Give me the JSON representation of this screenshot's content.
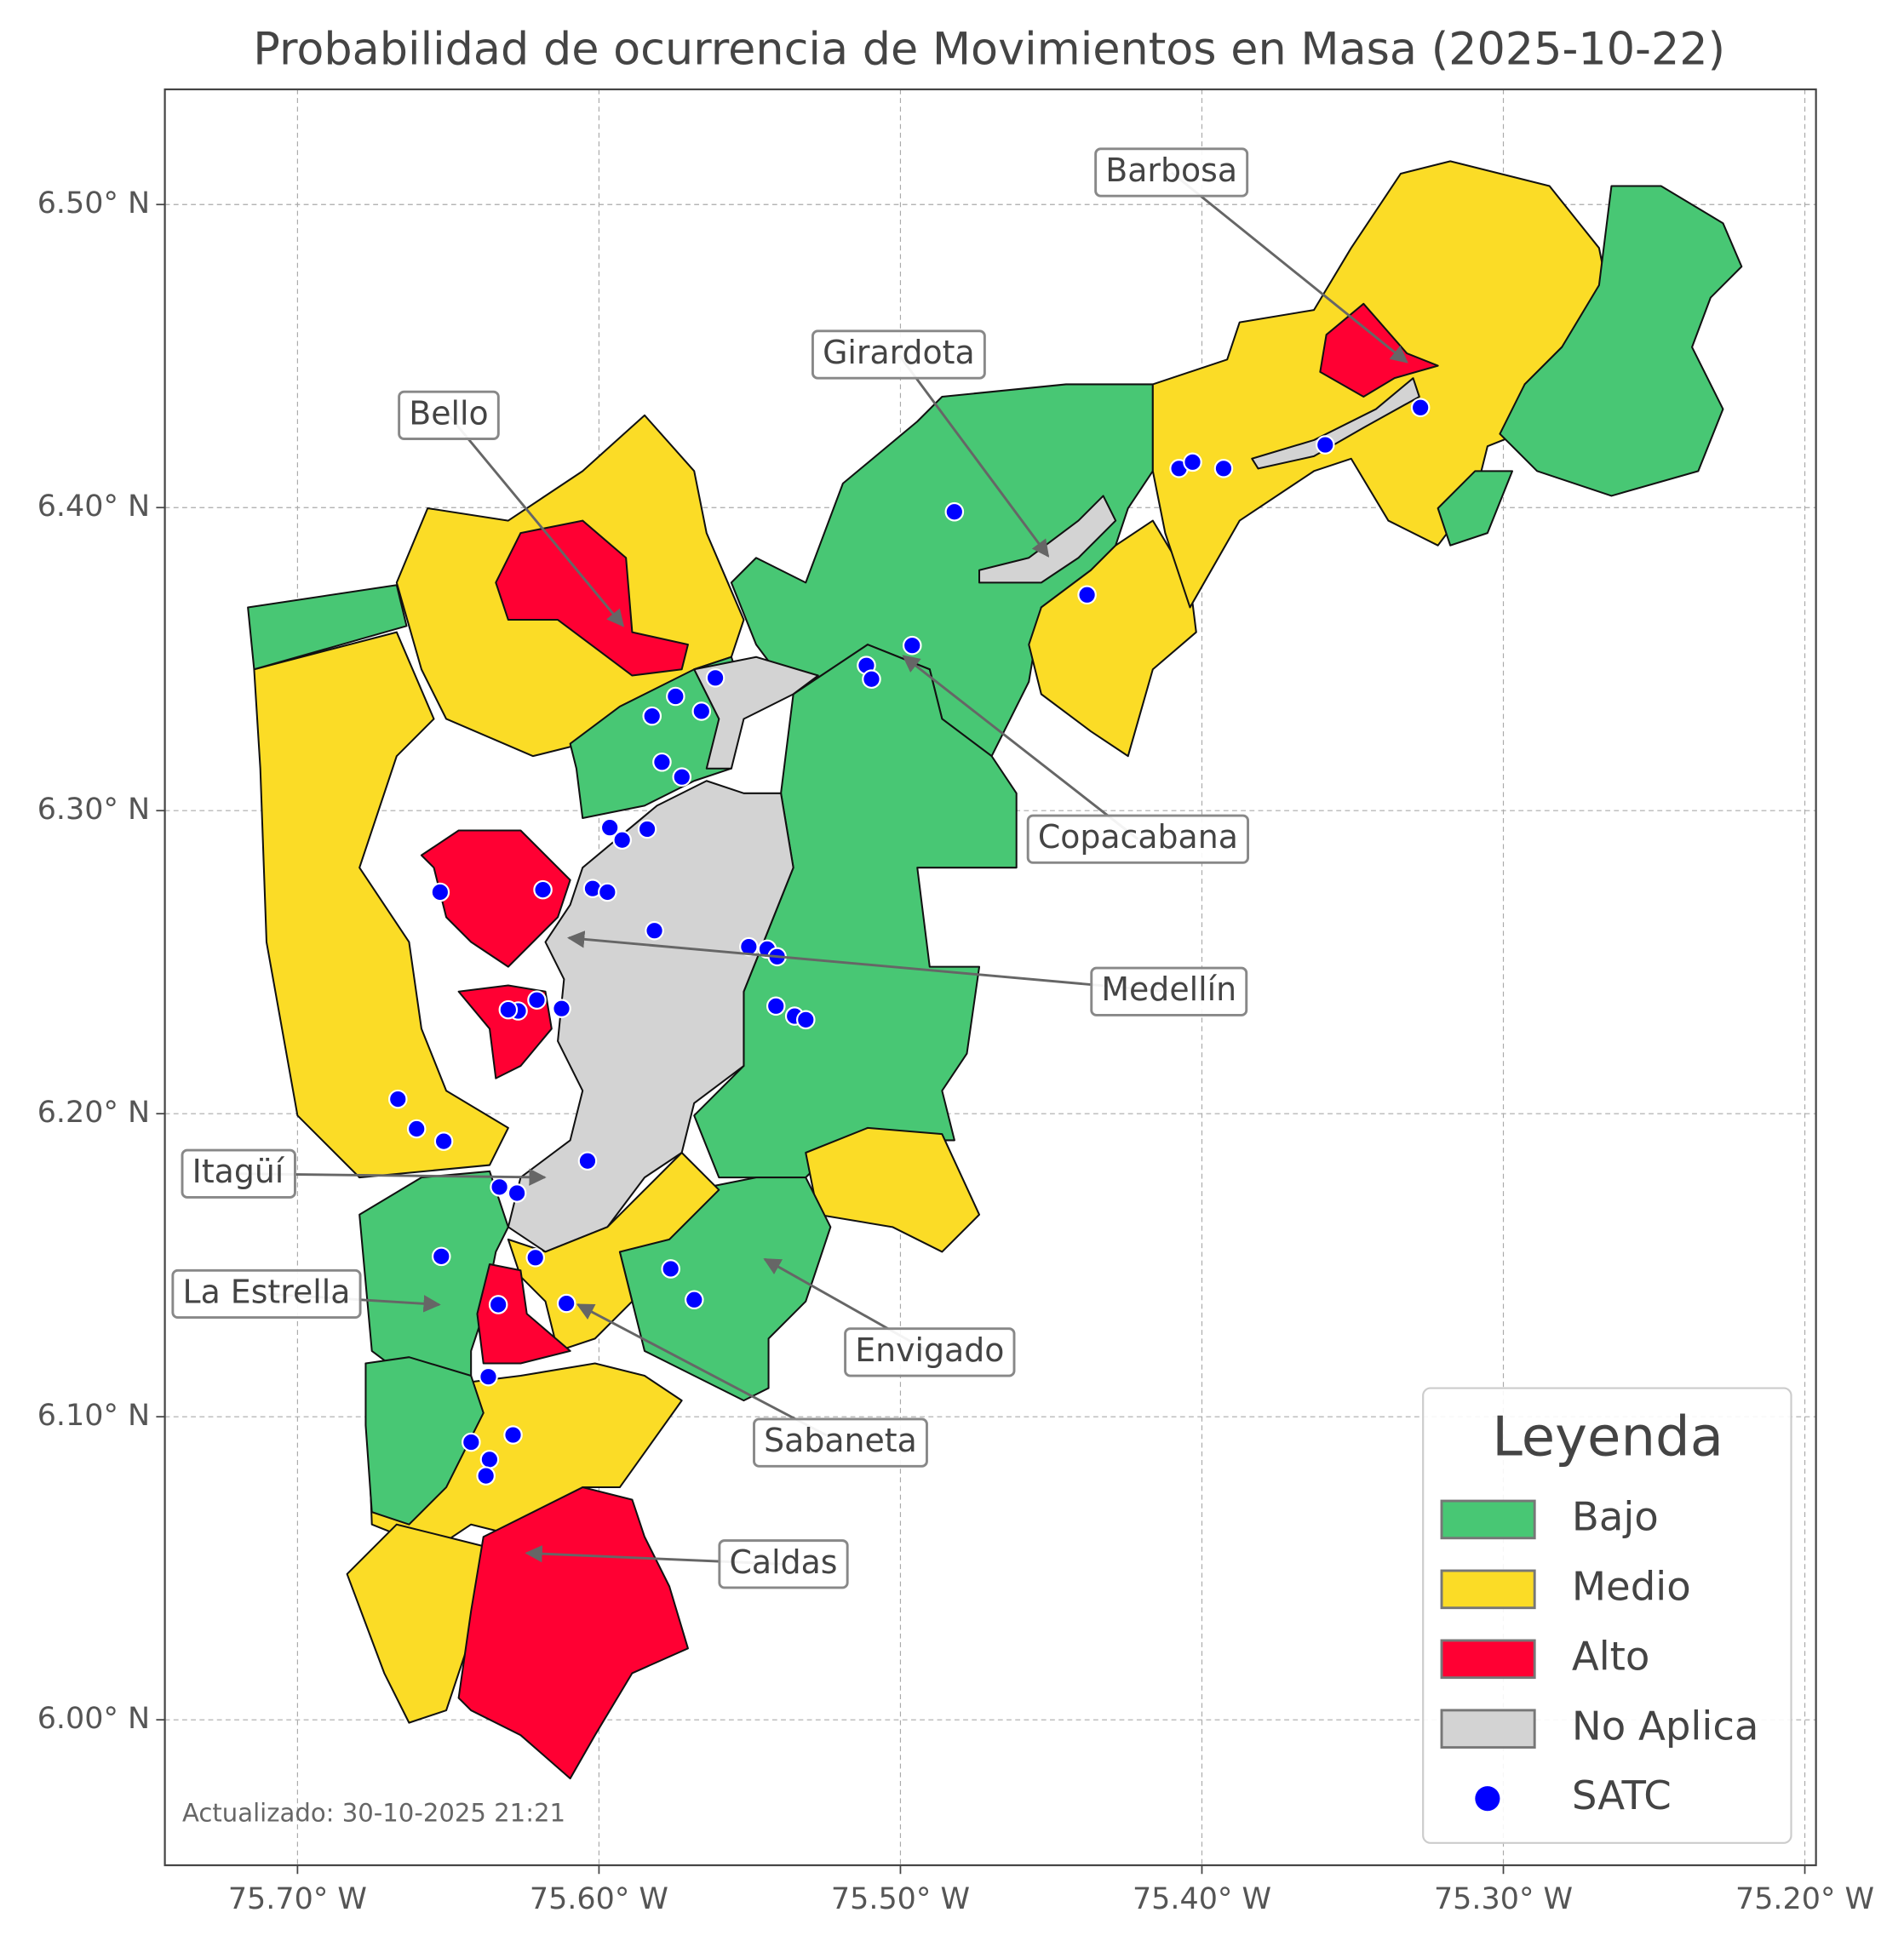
{
  "map": {
    "title": "Probabilidad de ocurrencia de Movimientos en Masa (2025-10-22)",
    "xlim": [
      -75.744,
      -75.1963
    ],
    "ylim": [
      5.952,
      6.538
    ],
    "xticks": [
      {
        "value": -75.7,
        "label": "75.70° W"
      },
      {
        "value": -75.6,
        "label": "75.60° W"
      },
      {
        "value": -75.5,
        "label": "75.50° W"
      },
      {
        "value": -75.4,
        "label": "75.40° W"
      },
      {
        "value": -75.3,
        "label": "75.30° W"
      },
      {
        "value": -75.2,
        "label": "75.20° W"
      }
    ],
    "yticks": [
      {
        "value": 6.0,
        "label": "6.00° N"
      },
      {
        "value": 6.1,
        "label": "6.10° N"
      },
      {
        "value": 6.2,
        "label": "6.20° N"
      },
      {
        "value": 6.3,
        "label": "6.30° N"
      },
      {
        "value": 6.4,
        "label": "6.40° N"
      },
      {
        "value": 6.5,
        "label": "6.50° N"
      }
    ],
    "grid": true,
    "legend": {
      "title": "Leyenda",
      "corner": "lower right",
      "entries": [
        {
          "name": "Bajo",
          "color": "#48c774"
        },
        {
          "name": "Medio",
          "color": "#fbdc26"
        },
        {
          "name": "Alto",
          "color": "#ff0033"
        },
        {
          "name": "No Aplica",
          "color": "#d3d3d3"
        },
        {
          "name": "SATC",
          "color": "#0000ff",
          "marker": "circle"
        }
      ]
    },
    "satc": {
      "lon": [
        -75.4821,
        -75.4076,
        -75.4031,
        -75.3928,
        -75.3591,
        -75.3275,
        -75.4381,
        -75.4961,
        -75.5113,
        -75.5096,
        -75.5614,
        -75.5746,
        -75.566,
        -75.5824,
        -75.5791,
        -75.5725,
        -75.5964,
        -75.5923,
        -75.584,
        -75.6021,
        -75.5972,
        -75.6186,
        -75.6527,
        -75.5816,
        -75.5503,
        -75.5442,
        -75.5409,
        -75.5413,
        -75.5351,
        -75.5314,
        -75.6206,
        -75.6124,
        -75.6268,
        -75.6301,
        -75.6667,
        -75.6605,
        -75.6515,
        -75.6038,
        -75.633,
        -75.6272,
        -75.6523,
        -75.6211,
        -75.5762,
        -75.5684,
        -75.6108,
        -75.6334,
        -75.6367,
        -75.6285,
        -75.6424,
        -75.6363,
        -75.6375
      ],
      "lat": [
        6.3986,
        6.4129,
        6.415,
        6.4129,
        6.4207,
        6.433,
        6.3712,
        6.3545,
        6.3479,
        6.3434,
        6.3438,
        6.3377,
        6.3328,
        6.3312,
        6.316,
        6.3111,
        6.2944,
        6.2903,
        6.2939,
        6.2743,
        6.2731,
        6.2739,
        6.2731,
        6.2604,
        6.2551,
        6.2543,
        6.2518,
        6.2355,
        6.2322,
        6.231,
        6.2375,
        6.2347,
        6.2339,
        6.2343,
        6.2048,
        6.195,
        6.1909,
        6.1844,
        6.1758,
        6.1738,
        6.1529,
        6.1525,
        6.1488,
        6.1386,
        6.1374,
        6.137,
        6.1132,
        6.094,
        6.0916,
        6.0859,
        6.0805
      ]
    },
    "annotations": [
      {
        "text": "Barbosa",
        "lon": -75.332,
        "lat": 6.448
      },
      {
        "text": "Girardota",
        "lon": -75.451,
        "lat": 6.384
      },
      {
        "text": "Bello",
        "lon": -75.592,
        "lat": 6.361
      },
      {
        "text": "Copacabana",
        "lon": -75.499,
        "lat": 6.351
      },
      {
        "text": "Medellín",
        "lon": -75.61,
        "lat": 6.258
      },
      {
        "text": "Itagüí",
        "lon": -75.618,
        "lat": 6.179
      },
      {
        "text": "La Estrella",
        "lon": -75.653,
        "lat": 6.137
      },
      {
        "text": "Envigado",
        "lon": -75.545,
        "lat": 6.152
      },
      {
        "text": "Sabaneta",
        "lon": -75.607,
        "lat": 6.137
      },
      {
        "text": "Caldas",
        "lon": -75.624,
        "lat": 6.055
      }
    ],
    "note": "Actualizado: 30-10-2025 21:21"
  }
}
